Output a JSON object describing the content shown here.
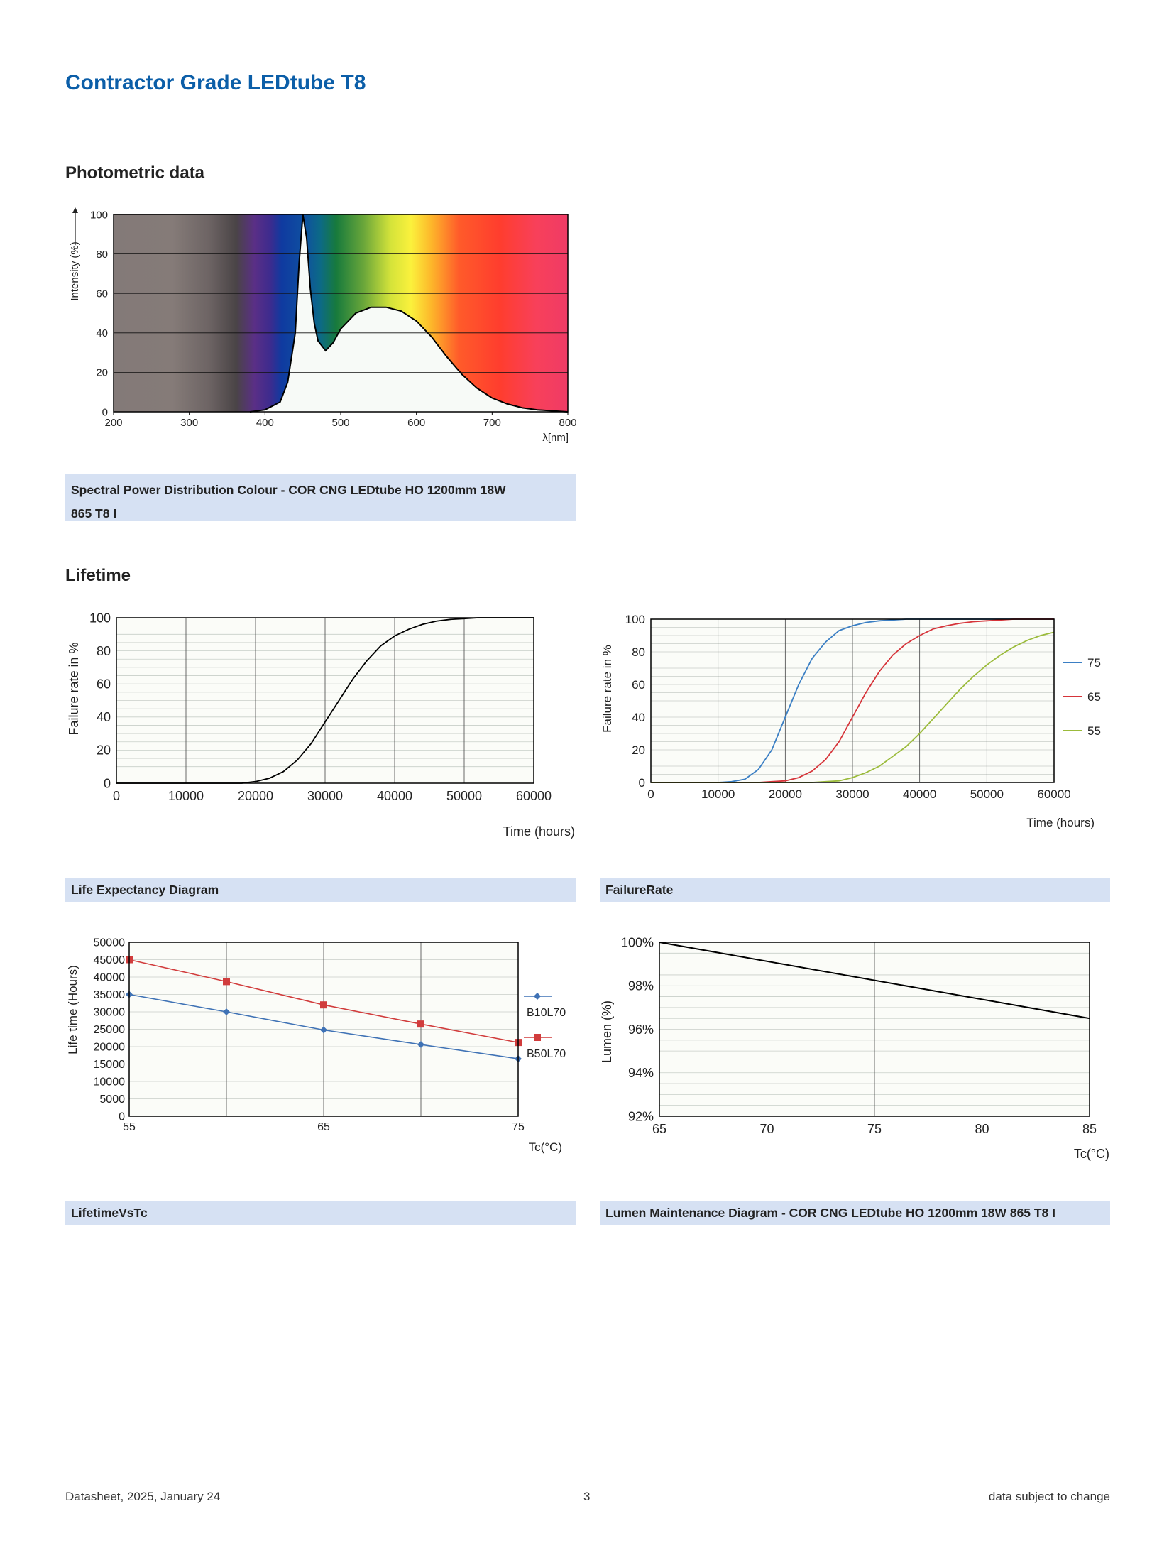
{
  "document": {
    "title": "Contractor Grade LEDtube T8",
    "sections": {
      "photometric": "Photometric data",
      "lifetime": "Lifetime"
    },
    "captions": {
      "spd_line1": "Spectral Power Distribution Colour - COR CNG LEDtube HO 1200mm 18W",
      "spd_line2": "865 T8 I",
      "life_expectancy": "Life Expectancy Diagram",
      "failure_rate": "FailureRate",
      "lifetime_vs_tc": "LifetimeVsTc",
      "lumen_maintenance": "Lumen Maintenance Diagram - COR CNG LEDtube HO 1200mm 18W 865 T8 I"
    },
    "footer": {
      "left": "Datasheet, 2025, January 24",
      "center": "3",
      "right": "data subject to change"
    }
  },
  "chart_data": [
    {
      "id": "spd",
      "type": "area",
      "xlabel": "λ[nm]",
      "ylabel": "Intensity (%)",
      "xlim": [
        200,
        800
      ],
      "ylim": [
        0,
        100
      ],
      "x_ticks": [
        200,
        300,
        400,
        500,
        600,
        700,
        800
      ],
      "y_ticks": [
        0,
        20,
        40,
        60,
        80,
        100
      ],
      "grid": "horizontal",
      "x": [
        380,
        400,
        420,
        430,
        440,
        445,
        450,
        455,
        460,
        465,
        470,
        480,
        490,
        500,
        520,
        540,
        560,
        580,
        600,
        620,
        640,
        660,
        680,
        700,
        720,
        740,
        760,
        780,
        800
      ],
      "y": [
        0,
        1,
        5,
        15,
        40,
        75,
        100,
        88,
        62,
        45,
        36,
        31,
        35,
        42,
        50,
        53,
        53,
        51,
        46,
        38,
        28,
        19,
        12,
        7,
        4,
        2,
        1,
        0.5,
        0
      ]
    },
    {
      "id": "life_expectancy",
      "type": "line",
      "xlabel": "Time (hours)",
      "ylabel": "Failure rate in %",
      "xlim": [
        0,
        60000
      ],
      "ylim": [
        0,
        100
      ],
      "x_ticks": [
        0,
        10000,
        20000,
        30000,
        40000,
        50000,
        60000
      ],
      "y_ticks": [
        0,
        20,
        40,
        60,
        80,
        100
      ],
      "grid": true,
      "x": [
        0,
        18000,
        20000,
        22000,
        24000,
        26000,
        28000,
        30000,
        32000,
        34000,
        36000,
        38000,
        40000,
        42000,
        44000,
        46000,
        48000,
        50000,
        52000,
        56000,
        60000
      ],
      "y": [
        0,
        0,
        1,
        3,
        7,
        14,
        24,
        37,
        50,
        63,
        74,
        83,
        89,
        93,
        96,
        98,
        99,
        99.5,
        100,
        100,
        100
      ]
    },
    {
      "id": "failure_rate",
      "type": "line",
      "xlabel": "Time (hours)",
      "ylabel": "Failure rate in %",
      "xlim": [
        0,
        60000
      ],
      "ylim": [
        0,
        100
      ],
      "x_ticks": [
        0,
        10000,
        20000,
        30000,
        40000,
        50000,
        60000
      ],
      "y_ticks": [
        0,
        20,
        40,
        60,
        80,
        100
      ],
      "grid": true,
      "legend": "right",
      "x": [
        0,
        10000,
        12000,
        14000,
        16000,
        18000,
        20000,
        22000,
        24000,
        26000,
        28000,
        30000,
        32000,
        34000,
        36000,
        38000,
        40000,
        42000,
        44000,
        46000,
        48000,
        50000,
        52000,
        54000,
        56000,
        58000,
        60000
      ],
      "series": [
        {
          "name": "75",
          "color": "#3b7fc4",
          "values": [
            0,
            0,
            0.5,
            2,
            8,
            20,
            40,
            60,
            76,
            86,
            93,
            96,
            98,
            99,
            99.5,
            100,
            100,
            100,
            100,
            100,
            100,
            100,
            100,
            100,
            100,
            100,
            100
          ]
        },
        {
          "name": "65",
          "color": "#d6343a",
          "values": [
            0,
            0,
            0,
            0,
            0,
            0.5,
            1,
            3,
            7,
            14,
            25,
            40,
            55,
            68,
            78,
            85,
            90,
            94,
            96,
            97.5,
            98.5,
            99,
            99.5,
            100,
            100,
            100,
            100
          ]
        },
        {
          "name": "55",
          "color": "#9bbb3b",
          "values": [
            0,
            0,
            0,
            0,
            0,
            0,
            0,
            0,
            0,
            0.5,
            1,
            3,
            6,
            10,
            16,
            22,
            30,
            39,
            48,
            57,
            65,
            72,
            78,
            83,
            87,
            90,
            92
          ]
        }
      ]
    },
    {
      "id": "lifetime_vs_tc",
      "type": "line",
      "xlabel": "Tc(°C)",
      "ylabel": "Life time (Hours)",
      "xlim": [
        55,
        75
      ],
      "ylim": [
        0,
        50000
      ],
      "x_ticks": [
        55,
        65,
        75
      ],
      "y_ticks": [
        0,
        5000,
        10000,
        15000,
        20000,
        25000,
        30000,
        35000,
        40000,
        45000,
        50000
      ],
      "grid": true,
      "legend": "right",
      "x": [
        55,
        60,
        65,
        70,
        75
      ],
      "series": [
        {
          "name": "B10L70",
          "color": "#3f72b5",
          "marker": "diamond",
          "values": [
            35000,
            30000,
            24800,
            20600,
            16500
          ]
        },
        {
          "name": "B50L70",
          "color": "#d13c3c",
          "marker": "square",
          "values": [
            45000,
            38700,
            32000,
            26500,
            21200
          ]
        }
      ]
    },
    {
      "id": "lumen_maintenance",
      "type": "line",
      "xlabel": "Tc(°C)",
      "ylabel": "Lumen (%)",
      "xlim": [
        65,
        85
      ],
      "ylim": [
        92,
        100
      ],
      "x_ticks": [
        65,
        70,
        75,
        80,
        85
      ],
      "y_ticks": [
        "92%",
        "94%",
        "96%",
        "98%",
        "100%"
      ],
      "grid": true,
      "x": [
        65,
        85
      ],
      "y": [
        100,
        96.5
      ]
    }
  ]
}
